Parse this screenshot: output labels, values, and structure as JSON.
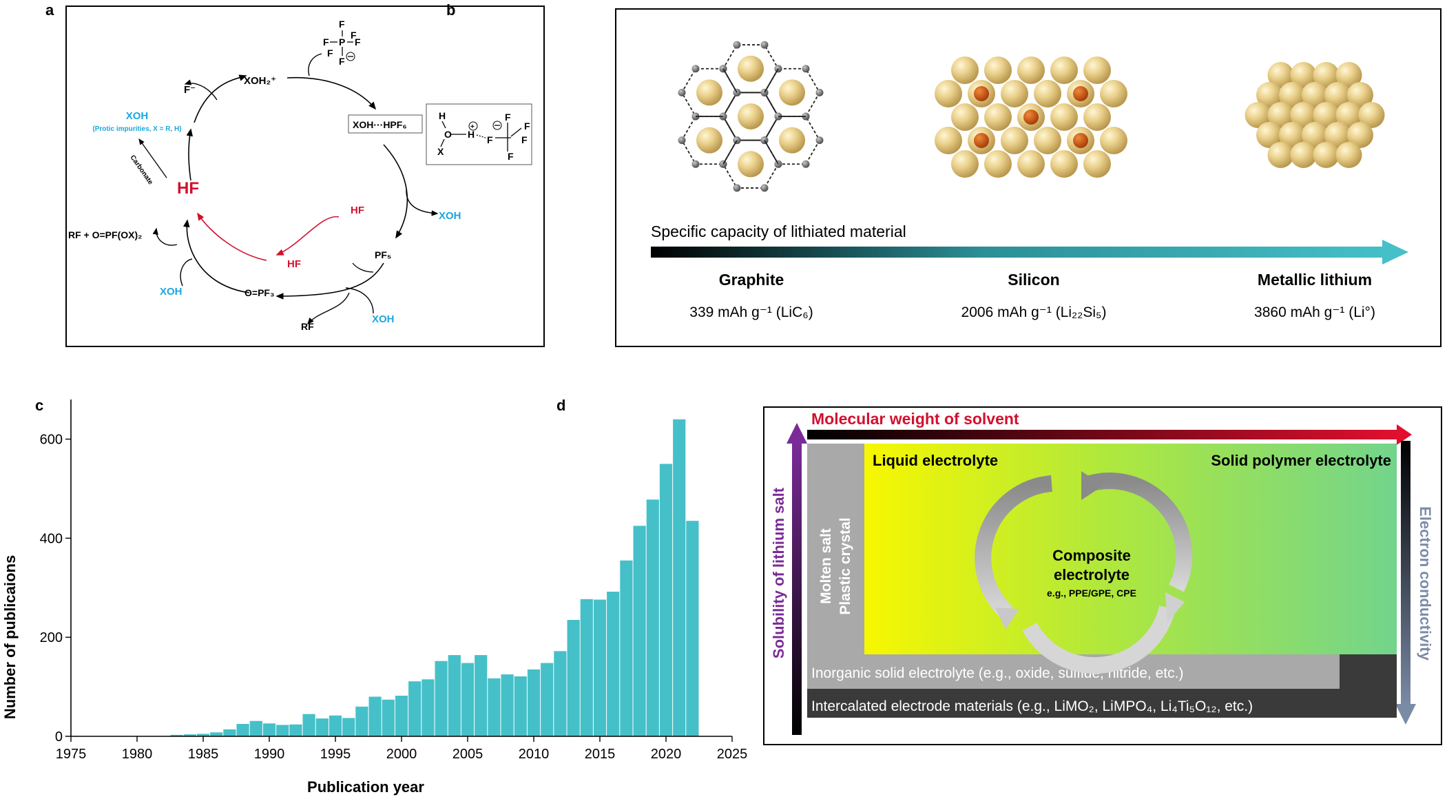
{
  "panels": {
    "a": "a",
    "b": "b",
    "c": "c",
    "d": "d"
  },
  "colors": {
    "teal": "#45c0c8",
    "cyan_label": "#1aa7de",
    "hf_red": "#d2102e",
    "purple": "#7a2b97",
    "slate": "#7a8ba6"
  },
  "panel_a": {
    "xoh2": "XOH₂⁺",
    "f_minus": "F⁻",
    "xoh_main": "XOH",
    "xoh_note": "(Protic impurities, X = R, H)",
    "carbonate": "Carbonate",
    "hf_main": "HF",
    "xoh_hpf6": "XOH···HPF₆",
    "xoh_r1": "XOH",
    "pf5": "PF₅",
    "hf_inner1": "HF",
    "hf_inner2": "HF",
    "rf_product": "RF + O=PF(OX)₂",
    "xoh_l": "XOH",
    "opf3": "O=PF₃",
    "rf": "RF",
    "xoh_b": "XOH",
    "f": "F",
    "p": "P",
    "h": "H",
    "o": "O",
    "x": "X"
  },
  "panel_b": {
    "arrow_label": "Specific capacity of lithiated material",
    "materials": [
      {
        "name": "Graphite",
        "capacity": "339 mAh g⁻¹ (LiC₆)"
      },
      {
        "name": "Silicon",
        "capacity": "2006 mAh g⁻¹ (Li₂₂Si₅)"
      },
      {
        "name": "Metallic lithium",
        "capacity": "3860 mAh g⁻¹ (Li°)"
      }
    ]
  },
  "chart_data": {
    "type": "bar",
    "xlabel": "Publication year",
    "ylabel": "Number of publicaions",
    "xlim": [
      1975,
      2025
    ],
    "ylim": [
      0,
      680
    ],
    "xticks": [
      1975,
      1980,
      1985,
      1990,
      1995,
      2000,
      2005,
      2010,
      2015,
      2020,
      2025
    ],
    "yticks": [
      0,
      200,
      400,
      600
    ],
    "color": "#45c0c8",
    "x": [
      1975,
      1976,
      1977,
      1978,
      1979,
      1980,
      1981,
      1982,
      1983,
      1984,
      1985,
      1986,
      1987,
      1988,
      1989,
      1990,
      1991,
      1992,
      1993,
      1994,
      1995,
      1996,
      1997,
      1998,
      1999,
      2000,
      2001,
      2002,
      2003,
      2004,
      2005,
      2006,
      2007,
      2008,
      2009,
      2010,
      2011,
      2012,
      2013,
      2014,
      2015,
      2016,
      2017,
      2018,
      2019,
      2020,
      2021,
      2022
    ],
    "values": [
      1,
      0,
      0,
      0,
      0,
      0,
      0,
      0,
      3,
      4,
      5,
      8,
      14,
      25,
      31,
      26,
      23,
      24,
      45,
      36,
      42,
      37,
      60,
      80,
      74,
      82,
      111,
      115,
      152,
      164,
      148,
      164,
      117,
      125,
      121,
      135,
      148,
      172,
      235,
      277,
      276,
      292,
      355,
      425,
      478,
      550,
      640,
      435
    ]
  },
  "panel_d": {
    "top_arrow": "Molecular weight of solvent",
    "left_arrow": "Solubility of lithium salt",
    "right_arrow": "Electron conductivity",
    "liquid": "Liquid electrolyte",
    "solid_polymer": "Solid polymer electrolyte",
    "molten": "Molten salt",
    "plastic": "Plastic crystal",
    "composite1": "Composite",
    "composite2": "electrolyte",
    "composite_eg": "e.g., PPE/GPE, CPE",
    "inorganic": "Inorganic solid electrolyte (e.g., oxide, sulfide, nitride, etc.)",
    "intercalated": "Intercalated electrode materials (e.g., LiMO₂, LiMPO₄, Li₄Ti₅O₁₂, etc.)"
  }
}
